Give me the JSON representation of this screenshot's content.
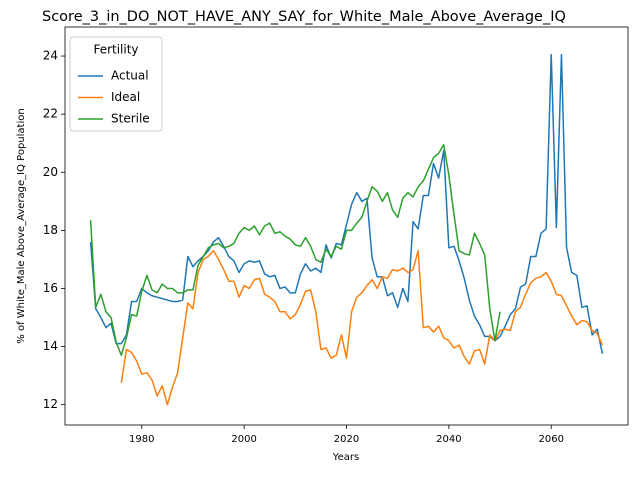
{
  "chart_data": {
    "type": "line",
    "title": "Score_3_in_DO_NOT_HAVE_ANY_SAY_for_White_Male_Above_Average_IQ",
    "xlabel": "Years",
    "ylabel": "% of White_Male Above_Average_IQ Population",
    "legend_title": "Fertility",
    "legend": "upper left",
    "grid": false,
    "x": [
      1970,
      1971,
      1972,
      1973,
      1974,
      1975,
      1976,
      1977,
      1978,
      1979,
      1980,
      1981,
      1982,
      1983,
      1984,
      1985,
      1986,
      1987,
      1988,
      1989,
      1990,
      1991,
      1992,
      1993,
      1994,
      1995,
      1996,
      1997,
      1998,
      1999,
      2000,
      2001,
      2002,
      2003,
      2004,
      2005,
      2006,
      2007,
      2008,
      2009,
      2010,
      2011,
      2012,
      2013,
      2014,
      2015,
      2016,
      2017,
      2018,
      2019,
      2020,
      2021,
      2022,
      2023,
      2024,
      2025,
      2026,
      2027,
      2028,
      2029,
      2030,
      2031,
      2032,
      2033,
      2034,
      2035,
      2036,
      2037,
      2038,
      2039,
      2040,
      2041,
      2042,
      2043,
      2044,
      2045,
      2046,
      2047,
      2048,
      2049,
      2050,
      2051,
      2052,
      2053,
      2054,
      2055,
      2056,
      2057,
      2058,
      2059,
      2060,
      2061,
      2062,
      2063,
      2064,
      2065,
      2066,
      2067,
      2068,
      2069,
      2070
    ],
    "series": [
      {
        "name": "Actual",
        "color": "#1f77b4",
        "values": [
          17.6,
          15.3,
          15.0,
          14.65,
          14.8,
          14.1,
          14.1,
          14.4,
          15.55,
          15.55,
          16.0,
          15.85,
          15.75,
          15.7,
          15.65,
          15.6,
          15.55,
          15.55,
          15.6,
          17.1,
          16.75,
          16.95,
          17.1,
          17.3,
          17.6,
          17.75,
          17.45,
          17.1,
          16.95,
          16.55,
          16.85,
          16.95,
          16.9,
          16.95,
          16.5,
          16.4,
          16.45,
          16.0,
          16.05,
          15.85,
          15.85,
          16.5,
          16.85,
          16.6,
          16.7,
          16.55,
          17.5,
          17.05,
          17.55,
          17.5,
          18.2,
          18.9,
          19.3,
          19.0,
          19.1,
          17.05,
          16.4,
          16.4,
          15.75,
          15.85,
          15.35,
          16.0,
          15.55,
          18.3,
          18.05,
          19.2,
          19.2,
          20.3,
          19.8,
          20.75,
          17.4,
          17.45,
          16.95,
          16.35,
          15.6,
          15.05,
          14.75,
          14.35,
          14.35,
          14.2,
          14.35,
          14.7,
          15.1,
          15.3,
          16.05,
          16.15,
          17.1,
          17.1,
          17.9,
          18.05,
          24.05,
          18.1,
          24.05,
          17.4,
          16.55,
          16.45,
          15.35,
          15.4,
          14.4,
          14.6,
          13.75
        ]
      },
      {
        "name": "Ideal",
        "color": "#ff7f0e",
        "values": [
          null,
          null,
          null,
          null,
          null,
          null,
          12.75,
          13.9,
          13.8,
          13.5,
          13.05,
          13.1,
          12.85,
          12.3,
          12.65,
          12.0,
          12.6,
          13.1,
          14.3,
          15.5,
          15.3,
          16.55,
          17.0,
          17.1,
          17.3,
          17.0,
          16.65,
          16.25,
          16.25,
          15.7,
          16.1,
          16.0,
          16.3,
          16.35,
          15.8,
          15.7,
          15.55,
          15.2,
          15.2,
          14.95,
          15.1,
          15.45,
          15.9,
          15.95,
          15.2,
          13.9,
          13.95,
          13.6,
          13.7,
          14.4,
          13.6,
          15.2,
          15.7,
          15.85,
          16.1,
          16.3,
          16.0,
          16.4,
          16.35,
          16.65,
          16.6,
          16.7,
          16.55,
          16.65,
          17.3,
          14.65,
          14.7,
          14.5,
          14.7,
          14.3,
          14.2,
          13.95,
          14.05,
          13.65,
          13.4,
          13.85,
          13.9,
          13.4,
          14.4,
          14.2,
          14.55,
          14.6,
          14.55,
          15.2,
          15.35,
          15.8,
          16.2,
          16.35,
          16.4,
          16.55,
          16.25,
          15.8,
          15.75,
          15.4,
          15.05,
          14.75,
          14.9,
          14.85,
          14.55,
          14.45,
          14.05
        ]
      },
      {
        "name": "Sterile",
        "color": "#2ca02c",
        "values": [
          18.35,
          15.35,
          15.8,
          15.2,
          15.0,
          14.15,
          13.7,
          14.3,
          15.1,
          15.05,
          15.9,
          16.45,
          15.95,
          15.85,
          16.15,
          16.0,
          16.0,
          15.85,
          15.85,
          15.95,
          15.95,
          16.8,
          17.1,
          17.4,
          17.5,
          17.55,
          17.4,
          17.45,
          17.55,
          17.9,
          18.1,
          18.0,
          18.15,
          17.85,
          18.15,
          18.25,
          17.9,
          17.95,
          17.8,
          17.7,
          17.5,
          17.45,
          17.75,
          17.45,
          17.0,
          16.9,
          17.35,
          17.1,
          17.45,
          17.35,
          18.0,
          18.0,
          18.25,
          18.45,
          19.0,
          19.5,
          19.35,
          19.0,
          19.3,
          18.7,
          18.45,
          19.1,
          19.3,
          19.15,
          19.5,
          19.7,
          20.1,
          20.5,
          20.65,
          20.95,
          19.9,
          18.55,
          17.3,
          17.2,
          17.15,
          17.9,
          17.55,
          17.15,
          15.3,
          14.2,
          15.2,
          null,
          null,
          null,
          null,
          null,
          null,
          null,
          null,
          null,
          null,
          null,
          null,
          null,
          null,
          null,
          null,
          null,
          null,
          null,
          null
        ]
      }
    ],
    "xlim": [
      1965,
      2075
    ],
    "xticks": [
      1980,
      2000,
      2020,
      2040,
      2060
    ],
    "ylim": [
      11.3,
      25.0
    ],
    "yticks": [
      12,
      14,
      16,
      18,
      20,
      22,
      24
    ]
  }
}
